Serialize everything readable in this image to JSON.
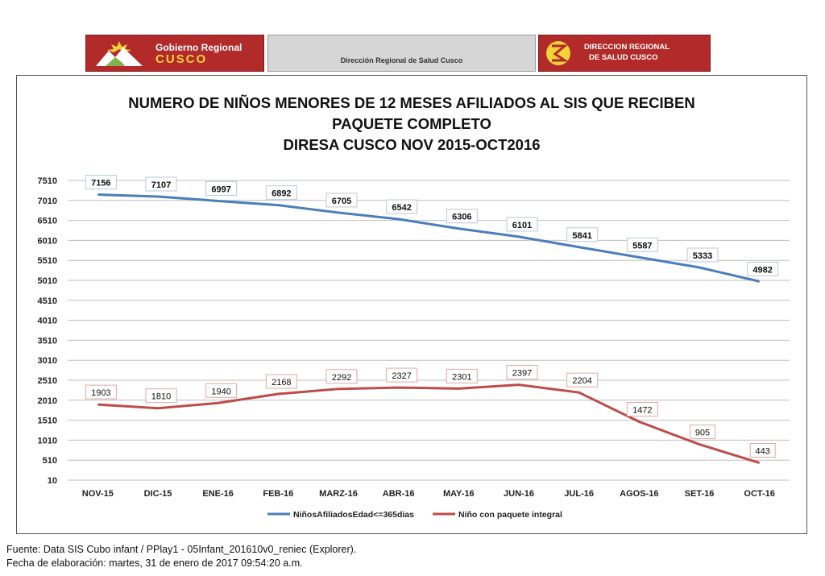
{
  "header": {
    "left_logo_line1": "Gobierno Regional",
    "left_logo_line2": "CUSCO",
    "center_text": "Dirección Regional de Salud Cusco",
    "right_logo_line1": "DIRECCION REGIONAL",
    "right_logo_line2": "DE SALUD CUSCO"
  },
  "footer": {
    "source": "Fuente: Data SIS Cubo infant / PPlay1 - 05Infant_201610v0_reniec (Explorer).",
    "date": "Fecha de elaboración: martes, 31 de enero de 2017 09:54:20 a.m."
  },
  "colors": {
    "series1": "#4a7ebb",
    "series2": "#be4b48",
    "grid": "#bfbfbf"
  },
  "chart_data": {
    "type": "line",
    "title": [
      "NUMERO DE NIÑOS MENORES DE 12 MESES  AFILIADOS AL SIS QUE RECIBEN",
      "PAQUETE COMPLETO",
      "DIRESA CUSCO NOV 2015-OCT2016"
    ],
    "categories": [
      "NOV-15",
      "DIC-15",
      "ENE-16",
      "FEB-16",
      "MARZ-16",
      "ABR-16",
      "MAY-16",
      "JUN-16",
      "JUL-16",
      "AGOS-16",
      "SET-16",
      "OCT-16"
    ],
    "yticks": [
      10,
      510,
      1010,
      1510,
      2010,
      2510,
      3010,
      3510,
      4010,
      4510,
      5010,
      5510,
      6010,
      6510,
      7010,
      7510
    ],
    "ylim": [
      10,
      7510
    ],
    "grid": true,
    "legend_position": "bottom",
    "series": [
      {
        "name": "NiñosAfiliadosEdad<=365dias",
        "values": [
          7156,
          7107,
          6997,
          6892,
          6705,
          6542,
          6306,
          6101,
          5841,
          5587,
          5333,
          4982
        ]
      },
      {
        "name": "Niño con paquete integral",
        "values": [
          1903,
          1810,
          1940,
          2168,
          2292,
          2327,
          2301,
          2397,
          2204,
          1472,
          905,
          443
        ]
      }
    ]
  }
}
